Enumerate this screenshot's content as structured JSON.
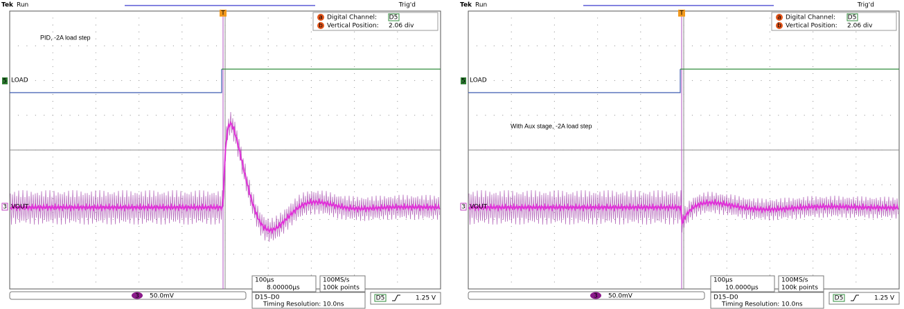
{
  "panels": [
    {
      "brand": "Tek",
      "status": "Run",
      "trigger_status": "Trig'd",
      "marker_a": "a",
      "marker_b": "b",
      "info": {
        "digital_channel_label": "Digital Channel:",
        "digital_channel": "D5",
        "vertical_position_label": "Vertical Position:",
        "vertical_position": "2.06 div"
      },
      "annotation": "PID, -2A load step",
      "channels": {
        "load_number": "5",
        "load_label": "LOAD",
        "vout_number": "3",
        "vout_label": "VOUT"
      },
      "trigger_marker": "T",
      "footer": {
        "channel_number": "3",
        "scale": "50.0mV",
        "timebase": "100µs",
        "trigger_position": "8.00000µs",
        "sample_rate": "100MS/s",
        "record_length": "100k points",
        "digital_bus": "D15–D0",
        "timing_resolution": "Timing Resolution: 10.0ns",
        "trigger_source": "D5",
        "trigger_level": "1.25 V"
      }
    },
    {
      "brand": "Tek",
      "status": "Run",
      "trigger_status": "Trig'd",
      "marker_a": "a",
      "marker_b": "b",
      "info": {
        "digital_channel_label": "Digital Channel:",
        "digital_channel": "D5",
        "vertical_position_label": "Vertical Position:",
        "vertical_position": "2.06 div"
      },
      "annotation": "With Aux stage, -2A load step",
      "channels": {
        "load_number": "5",
        "load_label": "LOAD",
        "vout_number": "3",
        "vout_label": "VOUT"
      },
      "trigger_marker": "T",
      "footer": {
        "channel_number": "3",
        "scale": "50.0mV",
        "timebase": "100µs",
        "trigger_position": "10.0000µs",
        "sample_rate": "100MS/s",
        "record_length": "100k points",
        "digital_bus": "D15–D0",
        "timing_resolution": "Timing Resolution: 10.0ns",
        "trigger_source": "D5",
        "trigger_level": "1.25 V"
      }
    }
  ]
}
